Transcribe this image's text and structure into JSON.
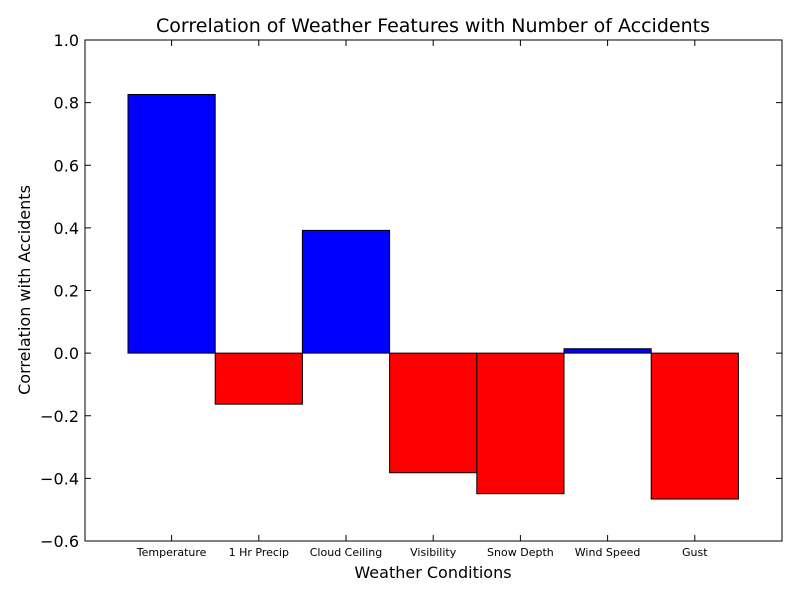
{
  "chart_data": {
    "type": "bar",
    "title": "Correlation of Weather Features with Number of Accidents",
    "xlabel": "Weather Conditions",
    "ylabel": "Correlation with Accidents",
    "ylim": [
      -0.6,
      1.0
    ],
    "yticks": [
      -0.6,
      -0.4,
      -0.2,
      0.0,
      0.2,
      0.4,
      0.6,
      0.8,
      1.0
    ],
    "ytick_labels": [
      "−0.6",
      "−0.4",
      "−0.2",
      "0.0",
      "0.2",
      "0.4",
      "0.6",
      "0.8",
      "1.0"
    ],
    "categories": [
      "Temperature",
      "1 Hr Precip",
      "Cloud Ceiling",
      "Visibility",
      "Snow Depth",
      "Wind Speed",
      "Gust"
    ],
    "values": [
      0.826,
      -0.163,
      0.392,
      -0.382,
      -0.449,
      0.014,
      -0.466
    ],
    "positive_color": "#0000ff",
    "negative_color": "#ff0000",
    "grid": false,
    "legend": "none"
  }
}
